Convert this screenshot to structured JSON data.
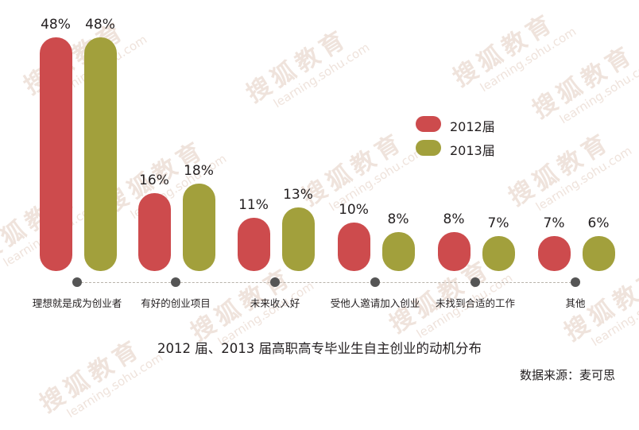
{
  "chart_data": {
    "type": "bar",
    "title": "2012 届、2013 届高职高专毕业生自主创业的动机分布",
    "source": "数据来源：麦可思",
    "xlabel": "",
    "ylabel": "",
    "ylim": [
      0,
      50
    ],
    "grid": false,
    "legend_position": "right-upper",
    "categories": [
      "理想就是成为创业者",
      "有好的创业项目",
      "未来收入好",
      "受他人邀请加入创业",
      "未找到合适的工作",
      "其他"
    ],
    "series": [
      {
        "name": "2012届",
        "color": "#cd4b4d",
        "values": [
          48,
          16,
          11,
          10,
          8,
          7
        ]
      },
      {
        "name": "2013届",
        "color": "#a2a03c",
        "values": [
          48,
          18,
          13,
          8,
          7,
          6
        ]
      }
    ],
    "value_labels": {
      "2012届": [
        "48%",
        "16%",
        "11%",
        "10%",
        "8%",
        "7%"
      ],
      "2013届": [
        "48%",
        "18%",
        "13%",
        "8%",
        "7%",
        "6%"
      ]
    }
  },
  "legend": [
    {
      "label": "2012届",
      "color": "#cd4b4d"
    },
    {
      "label": "2013届",
      "color": "#a2a03c"
    }
  ],
  "watermark": {
    "cn": "搜狐教育",
    "en": "learning.sohu.com"
  }
}
